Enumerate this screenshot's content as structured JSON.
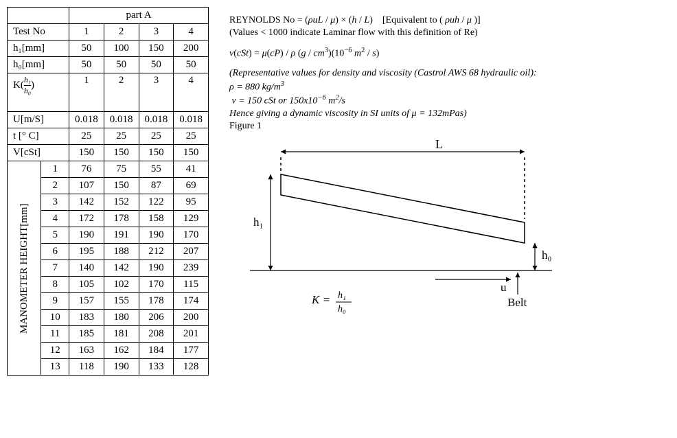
{
  "table": {
    "part_label": "part A",
    "row_labels": {
      "testno": "Test No",
      "h1": "h₁[mm]",
      "h0": "h₀[mm]",
      "K": "K(h₁/h₀)",
      "U": "U[m/S]",
      "t": "t [° C]",
      "V": "V[cSt]",
      "mano": "MANOMETER HEIGHT[mm]"
    },
    "tests": [
      "1",
      "2",
      "3",
      "4"
    ],
    "h1": [
      "50",
      "100",
      "150",
      "200"
    ],
    "h0": [
      "50",
      "50",
      "50",
      "50"
    ],
    "K": [
      "1",
      "2",
      "3",
      "4"
    ],
    "U": [
      "0.018",
      "0.018",
      "0.018",
      "0.018"
    ],
    "t": [
      "25",
      "25",
      "25",
      "25"
    ],
    "V": [
      "150",
      "150",
      "150",
      "150"
    ],
    "mano_rows": [
      {
        "i": "1",
        "v": [
          "76",
          "75",
          "55",
          "41"
        ]
      },
      {
        "i": "2",
        "v": [
          "107",
          "150",
          "87",
          "69"
        ]
      },
      {
        "i": "3",
        "v": [
          "142",
          "152",
          "122",
          "95"
        ]
      },
      {
        "i": "4",
        "v": [
          "172",
          "178",
          "158",
          "129"
        ]
      },
      {
        "i": "5",
        "v": [
          "190",
          "191",
          "190",
          "170"
        ]
      },
      {
        "i": "6",
        "v": [
          "195",
          "188",
          "212",
          "207"
        ]
      },
      {
        "i": "7",
        "v": [
          "140",
          "142",
          "190",
          "239"
        ]
      },
      {
        "i": "8",
        "v": [
          "105",
          "102",
          "170",
          "115"
        ]
      },
      {
        "i": "9",
        "v": [
          "157",
          "155",
          "178",
          "174"
        ]
      },
      {
        "i": "10",
        "v": [
          "183",
          "180",
          "206",
          "200"
        ]
      },
      {
        "i": "11",
        "v": [
          "185",
          "181",
          "208",
          "201"
        ]
      },
      {
        "i": "12",
        "v": [
          "163",
          "162",
          "184",
          "177"
        ]
      },
      {
        "i": "13",
        "v": [
          "118",
          "190",
          "133",
          "128"
        ]
      }
    ]
  },
  "text": {
    "reynolds": "REYNOLDS No = (ρuL / μ) × (h / L)     [Equivalent to ( ρuh / μ )]",
    "laminar": "(Values < 1000 indicate Laminar flow with this definition of Re)",
    "nu": "ν(cSt) = μ(cP) / ρ (g / cm³)(10⁻⁶ m² / s)",
    "rep": "(Representative values for density and viscosity (Castrol AWS 68 hydraulic oil):",
    "rho": "ρ = 880 kg/m³",
    "nu_val": "ν = 150 cSt or 150x10⁻⁶ m²/s",
    "mu_val": "Hence giving a dynamic viscosity in SI units of μ = 132mPas)",
    "figcap": "Figure 1"
  },
  "diagram": {
    "L": "L",
    "h1": "h₁",
    "h0": "h₀",
    "u": "u",
    "belt": "Belt",
    "K_eq": "K = h₁ / h₀"
  },
  "style": {
    "border_color": "#000000",
    "background": "#ffffff",
    "font_family": "Times New Roman",
    "table_font_size": 15,
    "text_font_size": 14
  }
}
